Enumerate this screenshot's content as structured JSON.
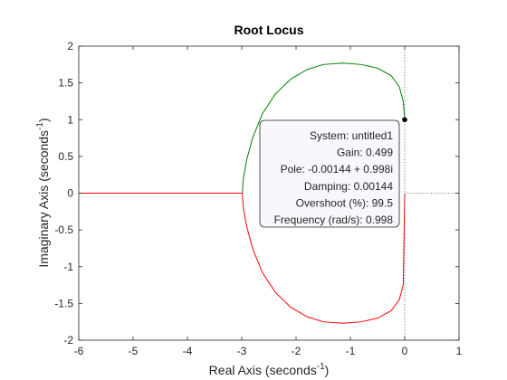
{
  "chart_data": {
    "type": "line",
    "title": "Root Locus",
    "xlabel_main": "Real Axis (seconds",
    "xlabel_sup": "-1",
    "xlabel_end": ")",
    "ylabel_main": "Imaginary Axis (seconds",
    "ylabel_sup": "-1",
    "ylabel_end": ")",
    "xlim": [
      -6,
      1
    ],
    "ylim": [
      -2,
      2
    ],
    "xticks": [
      -6,
      -5,
      -4,
      -3,
      -2,
      -1,
      0,
      1
    ],
    "yticks": [
      -2,
      -1.5,
      -1,
      -0.5,
      0,
      0.5,
      1,
      1.5,
      2
    ],
    "grid": false,
    "colors": {
      "branch_upper": "#008000",
      "branch_lower": "#ff0000",
      "real_axis_branch": "#ff0000",
      "datatip_bg": "#f8f8fc"
    },
    "series": [
      {
        "color": "#008000",
        "points": [
          [
            0,
            1
          ],
          [
            -0.027,
            1.25
          ],
          [
            -0.1,
            1.45
          ],
          [
            -0.25,
            1.6
          ],
          [
            -0.5,
            1.7
          ],
          [
            -0.8,
            1.75
          ],
          [
            -1.15,
            1.77
          ],
          [
            -1.5,
            1.75
          ],
          [
            -1.8,
            1.68
          ],
          [
            -2.1,
            1.55
          ],
          [
            -2.38,
            1.35
          ],
          [
            -2.62,
            1.08
          ],
          [
            -2.8,
            0.75
          ],
          [
            -2.91,
            0.45
          ],
          [
            -2.97,
            0.2
          ],
          [
            -2.99,
            0
          ]
        ]
      },
      {
        "color": "#ff0000",
        "points": [
          [
            0,
            -0.01
          ],
          [
            -0.027,
            -1.25
          ],
          [
            -0.1,
            -1.45
          ],
          [
            -0.25,
            -1.6
          ],
          [
            -0.5,
            -1.7
          ],
          [
            -0.8,
            -1.75
          ],
          [
            -1.15,
            -1.77
          ],
          [
            -1.5,
            -1.75
          ],
          [
            -1.8,
            -1.68
          ],
          [
            -2.1,
            -1.55
          ],
          [
            -2.38,
            -1.35
          ],
          [
            -2.62,
            -1.08
          ],
          [
            -2.8,
            -0.75
          ],
          [
            -2.91,
            -0.45
          ],
          [
            -2.97,
            -0.2
          ],
          [
            -2.99,
            0
          ]
        ]
      },
      {
        "color": "#ff0000",
        "points": [
          [
            -6,
            0
          ],
          [
            -2.99,
            0
          ]
        ]
      }
    ],
    "marker": {
      "x": 0,
      "y": 1
    },
    "datatip": {
      "lines": [
        "System: untitled1",
        "Gain: 0.499",
        "Pole: -0.00144 + 0.998i",
        "Damping: 0.00144",
        "Overshoot (%): 99.5",
        "Frequency (rad/s): 0.998"
      ]
    }
  }
}
